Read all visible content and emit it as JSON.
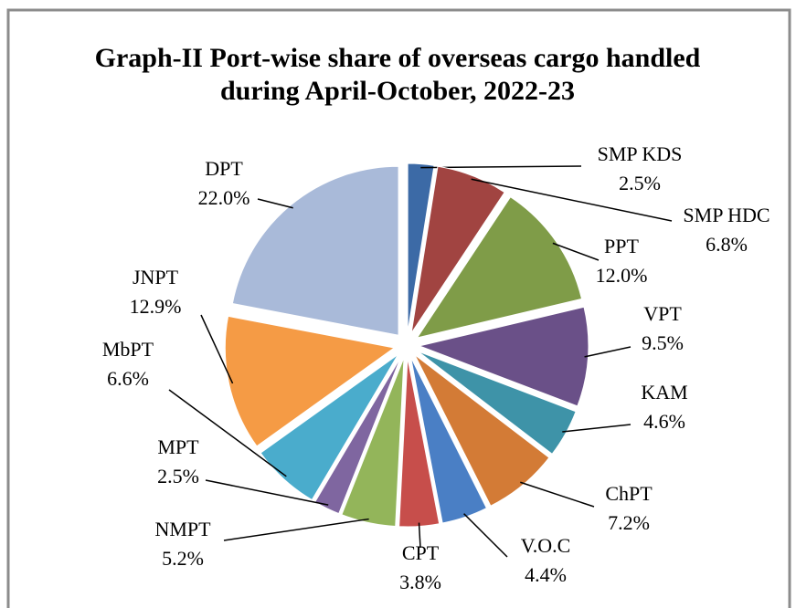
{
  "chart_data": {
    "type": "pie",
    "title": "Graph-II Port-wise share of  overseas cargo handled during April-October, 2022-23",
    "categories": [
      "SMP KDS",
      "SMP HDC",
      "PPT",
      "VPT",
      "KAM",
      "ChPT",
      "V.O.C",
      "CPT",
      "NMPT",
      "MPT",
      "MbPT",
      "JNPT",
      "DPT"
    ],
    "values": [
      2.5,
      6.8,
      12.0,
      9.5,
      4.6,
      7.2,
      4.4,
      3.8,
      5.2,
      2.5,
      6.6,
      12.9,
      22.0
    ],
    "value_labels": [
      "2.5%",
      "6.8%",
      "12.0%",
      "9.5%",
      "4.6%",
      "7.2%",
      "4.4%",
      "3.8%",
      "5.2%",
      "2.5%",
      "6.6%",
      "12.9%",
      "22.0%"
    ],
    "colors": [
      "#3c6aa6",
      "#a14441",
      "#7f9c48",
      "#6a5088",
      "#3e93a8",
      "#d37b36",
      "#4a7fc5",
      "#c74e4b",
      "#93b55a",
      "#7f66a0",
      "#4aaccc",
      "#f59b45",
      "#a9bad9"
    ]
  }
}
